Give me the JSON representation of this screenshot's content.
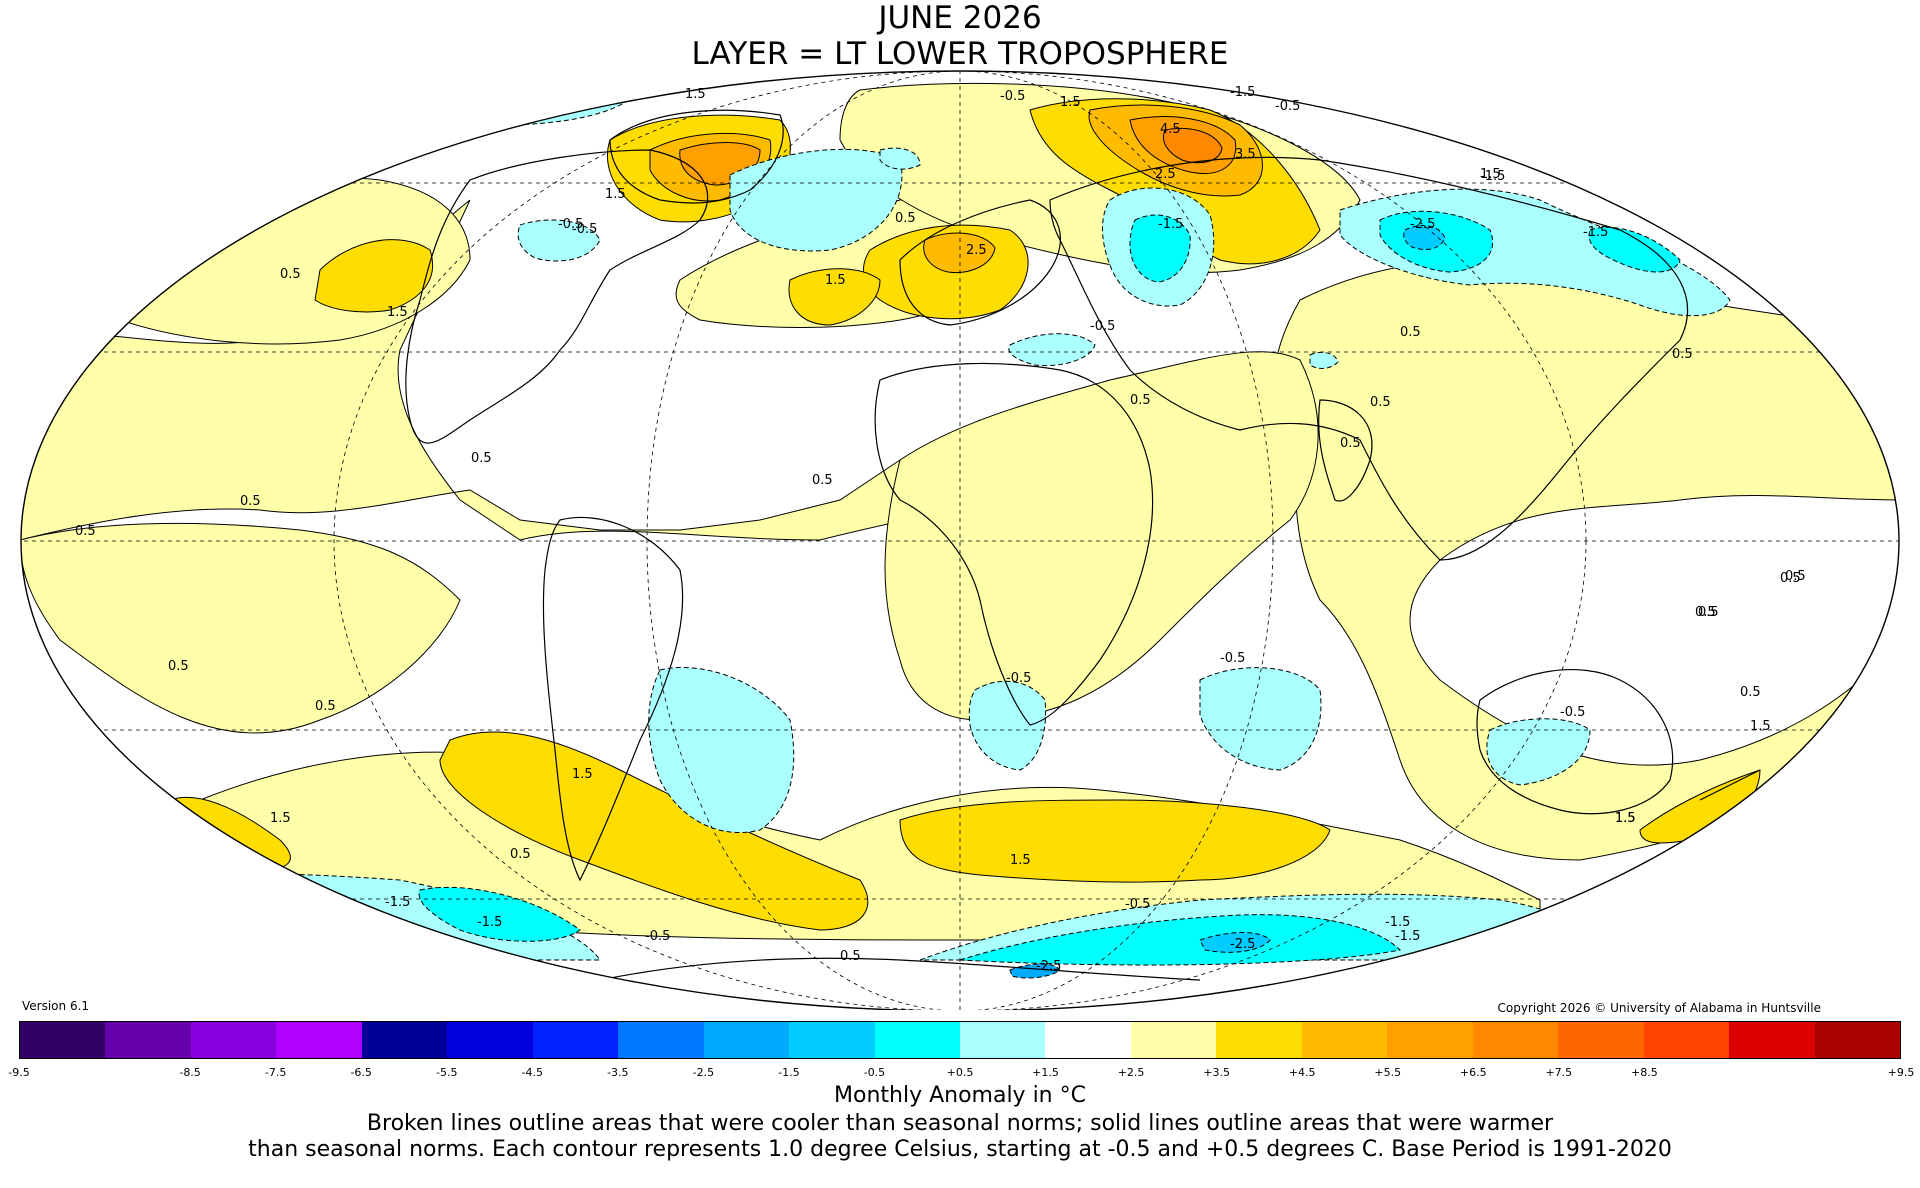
{
  "title": {
    "line1": "JUNE 2026",
    "line2": "LAYER = LT LOWER TROPOSPHERE"
  },
  "version": "Version 6.1",
  "copyright": "Copyright 2026 © University of Alabama in Huntsville",
  "colorbar": {
    "colors": [
      "#330066",
      "#6600aa",
      "#8800dd",
      "#b100ff",
      "#000099",
      "#0000dd",
      "#0022ff",
      "#0077ff",
      "#00aaff",
      "#00ccff",
      "#00ffff",
      "#aaffff",
      "#ffffff",
      "#ffffaa",
      "#ffdd00",
      "#ffbb00",
      "#ffa000",
      "#ff8800",
      "#ff6600",
      "#ff4400",
      "#dd0000",
      "#aa0000"
    ],
    "ticks": [
      "-9.5",
      "-8.5",
      "-7.5",
      "-6.5",
      "-5.5",
      "-4.5",
      "-3.5",
      "-2.5",
      "-1.5",
      "-0.5",
      "+0.5",
      "+1.5",
      "+2.5",
      "+3.5",
      "+4.5",
      "+5.5",
      "+6.5",
      "+7.5",
      "+8.5",
      "+9.5"
    ]
  },
  "legend": {
    "units": "Monthly Anomaly in °C",
    "note_line1": "Broken lines outline areas that were cooler than seasonal norms; solid lines outline areas that were warmer",
    "note_line2": "than seasonal norms. Each contour represents 1.0 degree Celsius, starting at -0.5 and +0.5 degrees C. Base Period is 1991-2020"
  },
  "map": {
    "projection": "Mollweide",
    "colors": {
      "warm_1": "#ffffaa",
      "warm_2": "#ffdd00",
      "warm_3": "#ffbb00",
      "warm_4": "#ffa000",
      "warm_5": "#ff8800",
      "cool_1": "#aaffff",
      "cool_2": "#00ffff",
      "cool_3": "#00ccff",
      "cool_4": "#00aaff",
      "cool_5": "#0077ff",
      "neutral": "#ffffff"
    },
    "contour_labels": [
      "1.5",
      "-0.5",
      "-1.5",
      "-0.5",
      "1.5",
      "4.5",
      "3.5",
      "2.5",
      "1.5",
      "-1.5",
      "-2.5",
      "-1.5",
      "-1.5",
      "-0.5",
      "0.5",
      "0.5",
      "1.5",
      "-0.5",
      "1.5",
      "0.5",
      "2.5",
      "1.5",
      "0.5",
      "0.5",
      "0.5",
      "0.5",
      "-0.5",
      "0.5",
      "0.5",
      "0.5",
      "0.5",
      "0.5",
      "0.5",
      "-0.5",
      "-0.5",
      "0.5",
      "-0.5",
      "0.5",
      "1.5",
      "1.5",
      "1.5",
      "0.5",
      "1.5",
      "1.5",
      "-1.5",
      "-1.5",
      "-0.5",
      "-1.5",
      "-2.5",
      "-2.5",
      "-0.5",
      "-1.5",
      "0.5",
      "0.5",
      "0.5",
      "1.5",
      "0.5"
    ]
  }
}
